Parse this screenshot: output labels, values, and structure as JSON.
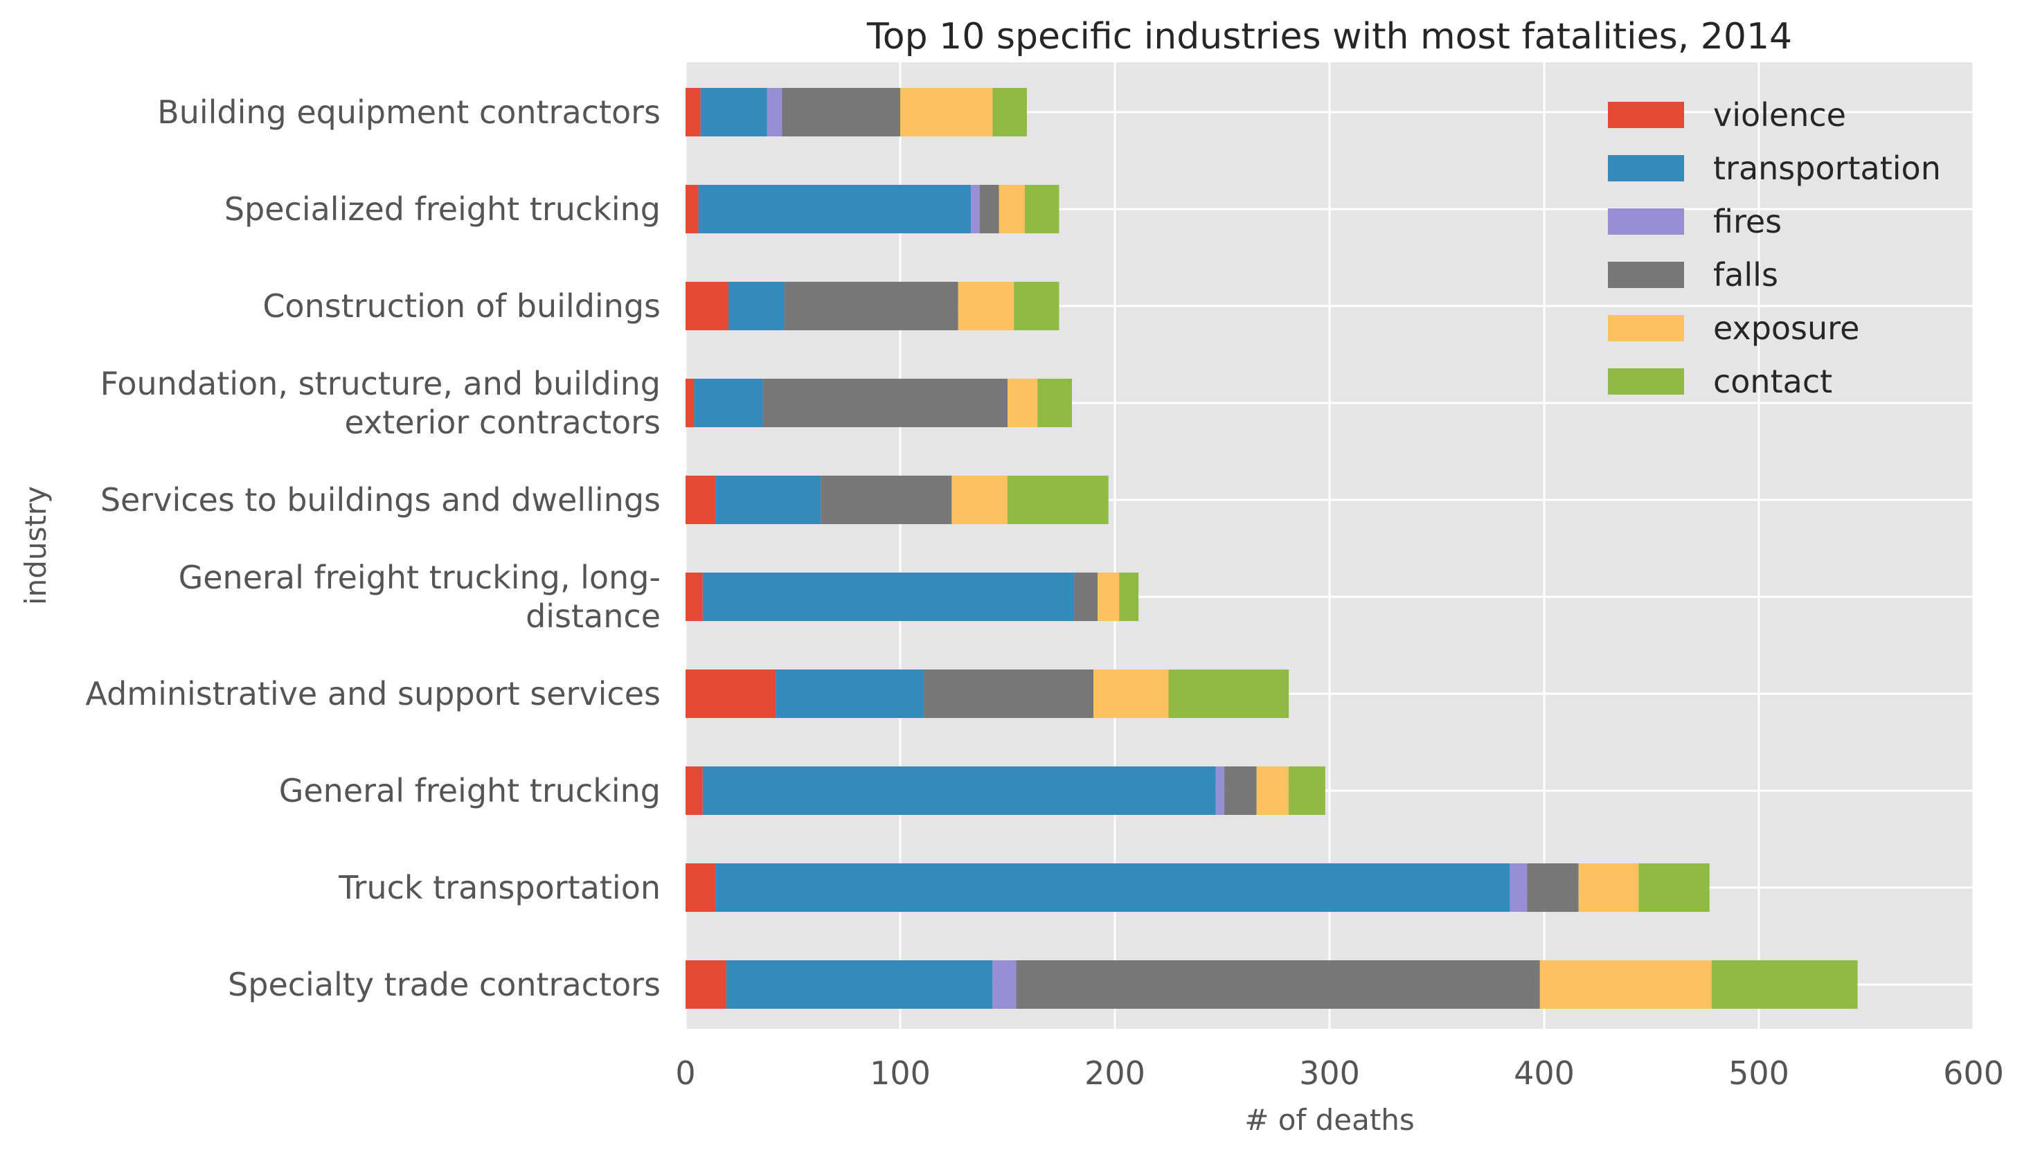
{
  "chart_data": {
    "type": "bar",
    "orientation": "horizontal",
    "stacked": true,
    "title": "Top 10 specific industries with most fatalities, 2014",
    "xlabel": "# of deaths",
    "ylabel": "industry",
    "xlim": [
      0,
      600
    ],
    "xticks": [
      "0",
      "100",
      "200",
      "300",
      "400",
      "500",
      "600"
    ],
    "grid": true,
    "legend_position": "top-right",
    "categories": [
      "Building equipment contractors",
      "Specialized freight trucking",
      "Construction of buildings",
      "Foundation, structure, and building exterior contractors",
      "Services to buildings and dwellings",
      "General freight trucking, long-distance",
      "Administrative and support services",
      "General freight trucking",
      "Truck transportation",
      "Specialty trade contractors"
    ],
    "category_lines": [
      [
        "Building equipment contractors"
      ],
      [
        "Specialized freight trucking"
      ],
      [
        "Construction of buildings"
      ],
      [
        "Foundation, structure, and building",
        "exterior contractors"
      ],
      [
        "Services to buildings and dwellings"
      ],
      [
        "General freight trucking, long-",
        "distance"
      ],
      [
        "Administrative and support services"
      ],
      [
        "General freight trucking"
      ],
      [
        "Truck transportation"
      ],
      [
        "Specialty trade contractors"
      ]
    ],
    "series": [
      {
        "name": "violence",
        "color": "#E24A33",
        "values": [
          7,
          6,
          20,
          4,
          14,
          8,
          42,
          8,
          14,
          19
        ]
      },
      {
        "name": "transportation",
        "color": "#348ABD",
        "values": [
          31,
          127,
          26,
          32,
          49,
          173,
          69,
          239,
          370,
          124
        ]
      },
      {
        "name": "fires",
        "color": "#988ED5",
        "values": [
          7,
          4,
          0,
          0,
          0,
          0,
          0,
          4,
          8,
          11
        ]
      },
      {
        "name": "falls",
        "color": "#777777",
        "values": [
          55,
          9,
          81,
          114,
          61,
          11,
          79,
          15,
          24,
          244
        ]
      },
      {
        "name": "exposure",
        "color": "#FBC15E",
        "values": [
          43,
          12,
          26,
          14,
          26,
          10,
          35,
          15,
          28,
          80
        ]
      },
      {
        "name": "contact",
        "color": "#8EBA42",
        "values": [
          16,
          16,
          21,
          16,
          47,
          9,
          56,
          17,
          33,
          68
        ]
      }
    ]
  }
}
